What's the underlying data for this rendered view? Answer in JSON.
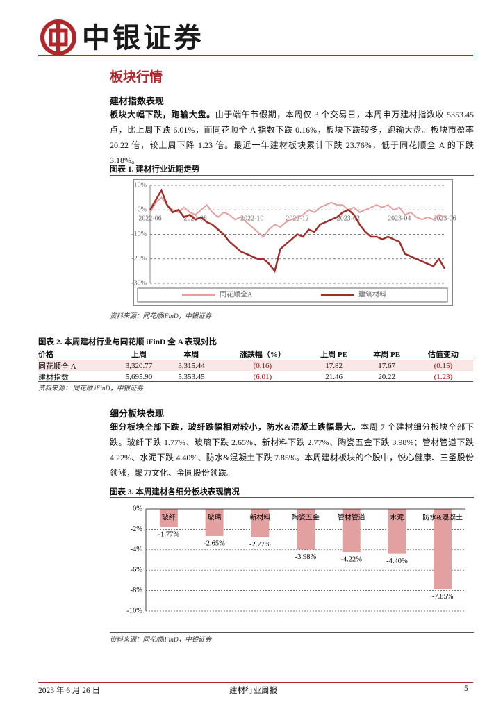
{
  "header": {
    "brand": "中银证券"
  },
  "section_title": "板块行情",
  "subsection1": {
    "title": "建材指数表现",
    "lead": "板块大幅下跌，跑输大盘。",
    "body": "由于端午节假期，本周仅 3 个交易日，本周申万建材指数收 5353.45 点，比上周下跌 6.01%，而同花顺全 A 指数下跌 0.16%，板块下跌较多，跑输大盘。板块市盈率 20.22 倍，较上周下降 1.23 倍。最近一年建材板块累计下跌 23.76%，低于同花顺全 A 的下跌 3.18%。"
  },
  "figure1": {
    "title": "图表 1. 建材行业近期走势",
    "source": "资料来源：同花顺iFinD，中银证券"
  },
  "table": {
    "title": "图表 2. 本周建材行业与同花顺 iFinD 全 A 表现对比",
    "header": [
      "价格",
      "上周",
      "本周",
      "涨跌幅（%）",
      "上周 PE",
      "本周 PE",
      "估值变动"
    ],
    "rows": [
      [
        "同花顺全 A",
        "3,320.77",
        "3,315.44",
        "(0.16)",
        "17.82",
        "17.67",
        "(0.15)"
      ],
      [
        "建材指数",
        "5,695.90",
        "5,353.45",
        "(6.01)",
        "21.46",
        "20.22",
        "(1.23)"
      ]
    ],
    "source": "资料来源： 同花顺 iFinD，中银证券"
  },
  "subsection2": {
    "title": "细分板块表现",
    "lead": "细分板块全部下跌，玻纤跌幅相对较小，防水&混凝土跌幅最大。",
    "body": "本周 7 个建材细分板块全部下跌。玻纤下跌 1.77%、玻璃下跌 2.65%、新材料下跌 2.77%、陶瓷五金下跌 3.98%；管材管道下跌 4.22%、水泥下跌 4.40%、防水&混凝土下跌 7.85%。本周建材板块的个股中，悦心健康、三圣股份领涨，聚力文化、金圆股份领跌。"
  },
  "figure3": {
    "title": "图表 3. 本周建材各细分板块表现情况",
    "source": "资料来源：同花顺iFinD，中银证券"
  },
  "footer": {
    "date": "2023 年 6 月 26 日",
    "report": "建材行业周报",
    "page": "5"
  },
  "chart_data": [
    {
      "type": "line",
      "categories": [
        "2022-06",
        null,
        null,
        null,
        null,
        null,
        null,
        null,
        "2022-08",
        null,
        null,
        null,
        null,
        null,
        null,
        null,
        null,
        null,
        "2022-10",
        null,
        null,
        null,
        null,
        null,
        null,
        null,
        "2022-12",
        null,
        null,
        null,
        null,
        null,
        null,
        null,
        null,
        "2023-02",
        null,
        null,
        null,
        null,
        null,
        null,
        null,
        null,
        "2023-04",
        null,
        null,
        null,
        null,
        null,
        null,
        null,
        "2023-06"
      ],
      "series": [
        {
          "name": "同花顺全A",
          "color": "#e3a0a0",
          "values": [
            -1,
            3,
            5,
            2,
            0,
            -1,
            1,
            -1,
            -2,
            0,
            2,
            -1,
            -3,
            -1,
            -2,
            -4,
            -3,
            -5,
            -7,
            -9,
            -11,
            -8,
            -6,
            -7,
            -5,
            -4,
            -3,
            -2,
            0,
            -1,
            1,
            2,
            3,
            2,
            2,
            0,
            1,
            -1,
            0,
            1,
            2,
            1,
            2,
            0,
            1,
            -2,
            -1,
            -3,
            -4,
            -3,
            -4,
            -2,
            -3
          ]
        },
        {
          "name": "建筑材料",
          "color": "#9e2f2a",
          "values": [
            0,
            4,
            8,
            2,
            -1,
            0,
            -3,
            -2,
            -4,
            -3,
            -5,
            -6,
            -8,
            -10,
            -13,
            -15,
            -17,
            -18,
            -19,
            -20,
            -20,
            -22,
            -25,
            -16,
            -14,
            -12,
            -10,
            -11,
            -8,
            -9,
            -6,
            -5,
            -4,
            -3,
            -1,
            0,
            -2,
            -6,
            -9,
            -11,
            -11,
            -12,
            -11,
            -12,
            -13,
            -18,
            -19,
            -20,
            -21,
            -22,
            -23,
            -20,
            -24
          ]
        }
      ],
      "ylim": [
        -30,
        10
      ],
      "yticks": [
        {
          "value": 10,
          "label": "10%"
        },
        {
          "value": 0,
          "label": "0%"
        },
        {
          "value": -10,
          "label": "-10%"
        },
        {
          "value": -20,
          "label": "-20%"
        },
        {
          "value": -30,
          "label": "-30%"
        }
      ],
      "grid": true,
      "legend": "bottom"
    },
    {
      "type": "bar",
      "categories": [
        "玻纤",
        "玻璃",
        "新材料",
        "陶瓷五金",
        "管材管道",
        "水泥",
        "防水&混凝土"
      ],
      "values": [
        -1.77,
        -2.65,
        -2.77,
        -3.98,
        -4.22,
        -4.4,
        -7.85
      ],
      "value_labels": [
        "-1.77%",
        "-2.65%",
        "-2.77%",
        "-3.98%",
        "-4.22%",
        "-4.40%",
        "-7.85%"
      ],
      "color": "#e3a0a0",
      "ylim": [
        -10,
        0
      ],
      "yticks": [
        {
          "value": 0,
          "label": "0%"
        },
        {
          "value": -2,
          "label": "-2%"
        },
        {
          "value": -4,
          "label": "-4%"
        },
        {
          "value": -6,
          "label": "-6%"
        },
        {
          "value": -8,
          "label": "-8%"
        },
        {
          "value": -10,
          "label": "-10%"
        }
      ],
      "grid": true
    }
  ]
}
